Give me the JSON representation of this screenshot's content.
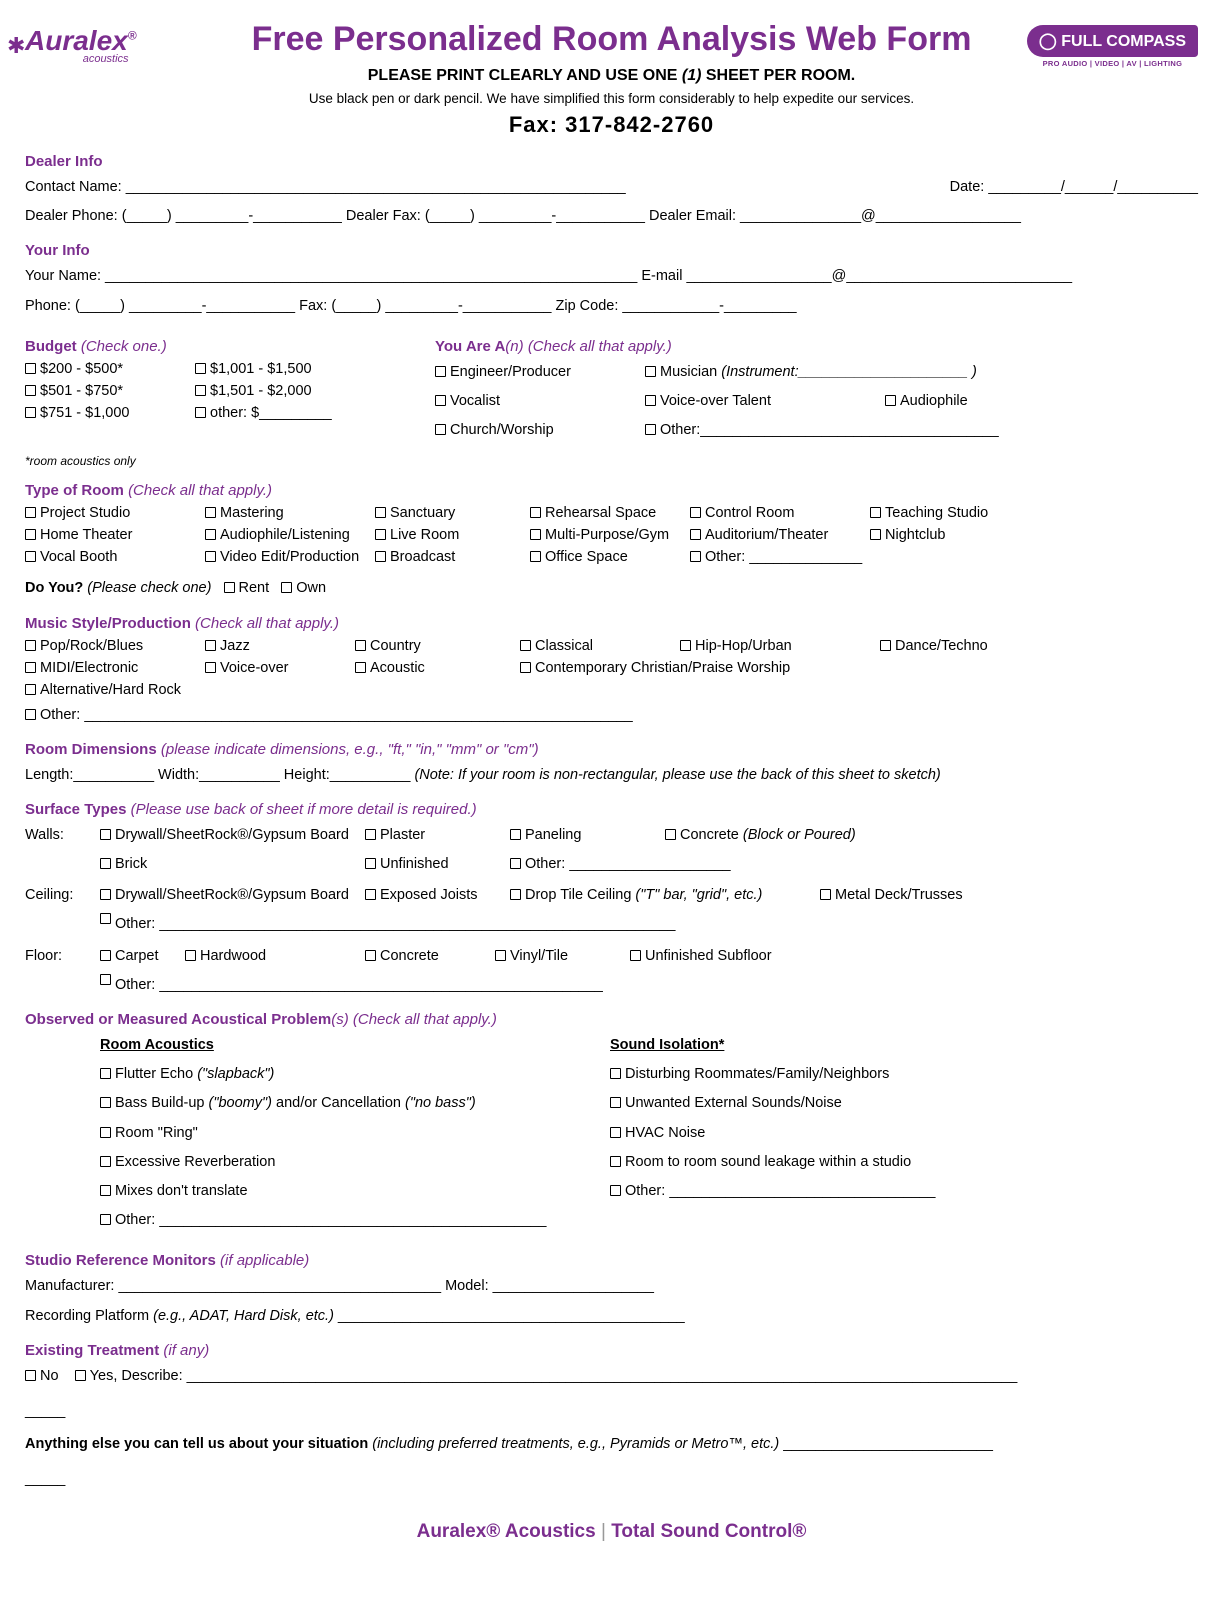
{
  "logo": {
    "brand": "Auralex",
    "sub": "acoustics",
    "reg": "®"
  },
  "compass": {
    "text": "FULL COMPASS",
    "sub": "PRO AUDIO | VIDEO | AV | LIGHTING"
  },
  "title": "Free Personalized Room Analysis Web Form",
  "subtitle_a": "PLEASE PRINT CLEARLY AND USE ONE ",
  "subtitle_b": "(1)",
  "subtitle_c": " SHEET PER ROOM.",
  "note": "Use black pen or dark pencil. We have simplified this form considerably to help expedite our services.",
  "fax": "Fax: 317-842-2760",
  "dealer": {
    "h": "Dealer Info",
    "contact": "Contact Name: ______________________________________________________________",
    "date": "Date: _________/______/__________",
    "phone": "Dealer Phone: (_____) _________-___________ Dealer Fax: (_____) _________-___________ Dealer Email: _______________@__________________"
  },
  "your": {
    "h": "Your Info",
    "name": "Your Name: __________________________________________________________________ E-mail __________________@____________________________",
    "phone": "Phone: (_____) _________-___________ Fax: (_____) _________-___________ Zip Code: ____________-_________"
  },
  "budget": {
    "h": "Budget",
    "hi": "(Check one.)",
    "opts": [
      "$200 - $500*",
      "$1,001 - $1,500",
      "$501 - $750*",
      "$1,501 - $2,000",
      "$751 - $1,000",
      "other: $_________"
    ],
    "foot": "*room acoustics only"
  },
  "youare": {
    "h": "You Are A",
    "hn": "(n)",
    "hi": "(Check all that apply.)",
    "r1a": "Engineer/Producer",
    "r1b_a": "Musician ",
    "r1b_b": "(Instrument:_____________________ )",
    "r2a": "Vocalist",
    "r2b": "Voice-over Talent",
    "r2c": "Audiophile",
    "r3a": "Church/Worship",
    "r3b": "Other:_____________________________________"
  },
  "roomtype": {
    "h": "Type of Room",
    "hi": "(Check all that apply.)",
    "opts": [
      "Project Studio",
      "Mastering",
      "Sanctuary",
      "Rehearsal Space",
      "Control Room",
      "Teaching Studio",
      "Home Theater",
      "Audiophile/Listening",
      "Live Room",
      "Multi-Purpose/Gym",
      "Auditorium/Theater",
      "Nightclub",
      "Vocal Booth",
      "Video Edit/Production",
      "Broadcast",
      "Office Space",
      "Other: ______________",
      ""
    ]
  },
  "doyou": {
    "q": "Do You?",
    "qi": "(Please check one)",
    "a": "Rent",
    "b": "Own"
  },
  "music": {
    "h": "Music Style/Production",
    "hi": "(Check all that apply.)",
    "opts": [
      "Pop/Rock/Blues",
      "Jazz",
      "Country",
      "Classical",
      "Hip-Hop/Urban",
      "Dance/Techno",
      "MIDI/Electronic",
      "Voice-over",
      "Acoustic",
      "Contemporary Christian/Praise Worship",
      "",
      "Alternative/Hard Rock"
    ],
    "other": "Other: ____________________________________________________________________"
  },
  "dims": {
    "h": "Room Dimensions",
    "hi": "(please indicate dimensions, e.g., \"ft,\" \"in,\" \"mm\" or \"cm\")",
    "line": "Length:__________ Width:__________ Height:__________ ",
    "note": "(Note: If your room is non-rectangular, please use the back of this sheet to sketch)"
  },
  "surface": {
    "h": "Surface Types",
    "hi": "(Please use back of sheet if more detail is required.)",
    "walls": "Walls:",
    "w1": [
      "Drywall/SheetRock®/Gypsum Board",
      "Plaster",
      "Paneling"
    ],
    "w1c_a": "Concrete ",
    "w1c_b": "(Block or Poured)",
    "w2": [
      "Brick",
      "Unfinished",
      "Other: ____________________"
    ],
    "ceiling": "Ceiling:",
    "c1a": "Drywall/SheetRock®/Gypsum Board",
    "c1b": "Exposed Joists",
    "c1c_a": "Drop Tile Ceiling ",
    "c1c_b": "(\"T\" bar, \"grid\", etc.)",
    "c1d": "Metal Deck/Trusses",
    "c2": "Other: ________________________________________________________________",
    "floor": "Floor:",
    "f1": [
      "Carpet",
      "Hardwood",
      "Concrete",
      "Vinyl/Tile",
      "Unfinished Subfloor"
    ],
    "f2": "Other: _______________________________________________________"
  },
  "problems": {
    "h": "Observed or Measured Acoustical Problem",
    "hs": "(s)",
    "hi": "(Check all that apply.)",
    "ra": "Room Acoustics",
    "si": "Sound Isolation*",
    "left": [
      {
        "a": "Flutter Echo ",
        "b": "(\"slapback\")"
      },
      {
        "a": "Bass Build-up ",
        "b": "(\"boomy\")",
        "c": " and/or Cancellation ",
        "d": "(\"no bass\")"
      },
      {
        "a": "Room \"Ring\""
      },
      {
        "a": "Excessive Reverberation"
      },
      {
        "a": "Mixes don't translate"
      },
      {
        "a": "Other: ________________________________________________"
      }
    ],
    "right": [
      "Disturbing Roommates/Family/Neighbors",
      "Unwanted External Sounds/Noise",
      "HVAC Noise",
      "Room to room sound leakage within a studio",
      "Other: _________________________________"
    ]
  },
  "monitors": {
    "h": "Studio Reference Monitors",
    "hi": "(if applicable)",
    "line1": "Manufacturer: ________________________________________ Model: ____________________",
    "line2a": "Recording Platform ",
    "line2b": "(e.g., ADAT, Hard Disk, etc.)",
    "line2c": " ___________________________________________"
  },
  "existing": {
    "h": "Existing Treatment",
    "hi": "(if any)",
    "no": "No",
    "yes": "Yes, Describe:  _______________________________________________________________________________________________________"
  },
  "anything": {
    "a": "Anything else you can tell us about your situation ",
    "b": "(including preferred treatments, e.g., Pyramids or Metro™, etc.)",
    "c": " __________________________"
  },
  "dash1": "_____",
  "dash2": "_____",
  "footer": {
    "a": "Auralex® Acoustics",
    "sep": " | ",
    "b": "Total Sound Control®"
  }
}
